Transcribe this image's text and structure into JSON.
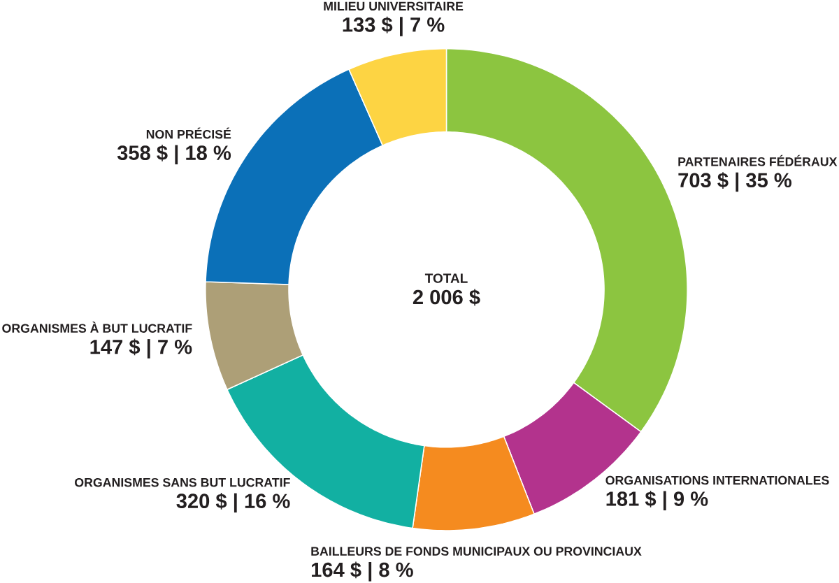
{
  "chart_data": {
    "type": "donut",
    "categories": [
      "PARTENAIRES FÉDÉRAUX",
      "ORGANISATIONS INTERNATIONALES",
      "BAILLEURS DE FONDS MUNICIPAUX OU PROVINCIAUX",
      "ORGANISMES SANS BUT LUCRATIF",
      "ORGANISMES À BUT LUCRATIF",
      "NON PRÉCISÉ",
      "MILIEU UNIVERSITAIRE"
    ],
    "values": [
      703,
      181,
      164,
      320,
      147,
      358,
      133
    ],
    "colors": [
      "#8cc540",
      "#b3338d",
      "#f58b1f",
      "#12b0a2",
      "#ad9f77",
      "#0b70b8",
      "#fdd443"
    ],
    "value_labels": [
      "703 $ | 35 %",
      "181 $ | 9 %",
      "164 $ | 8 %",
      "320 $ | 16 %",
      "147 $ | 7 %",
      "358 $ | 18 %",
      "133 $ | 7 %"
    ],
    "annotations": [
      "TOTAL",
      "2 006 $"
    ]
  }
}
